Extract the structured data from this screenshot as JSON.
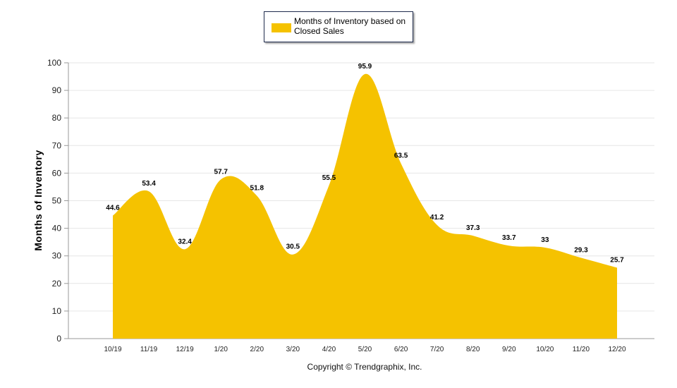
{
  "chart_data": {
    "type": "area",
    "categories": [
      "10/19",
      "11/19",
      "12/19",
      "1/20",
      "2/20",
      "3/20",
      "4/20",
      "5/20",
      "6/20",
      "7/20",
      "8/20",
      "9/20",
      "10/20",
      "11/20",
      "12/20"
    ],
    "series": [
      {
        "name": "Months of Inventory based on Closed Sales",
        "values": [
          44.6,
          53.4,
          32.4,
          57.7,
          51.8,
          30.5,
          55.5,
          95.9,
          63.5,
          41.2,
          37.3,
          33.7,
          33,
          29.3,
          25.7
        ],
        "labels": [
          "44.6",
          "53.4",
          "32.4",
          "57.7",
          "51.8",
          "30.5",
          "55.5",
          "95.9",
          "63.5",
          "41.2",
          "37.3",
          "33.7",
          "33",
          "29.3",
          "25.7"
        ],
        "color": "#f5c200"
      }
    ],
    "ylabel": "Months of Inventory",
    "ylim": [
      0,
      100
    ],
    "yticks": [
      "0",
      "10",
      "20",
      "30",
      "40",
      "50",
      "60",
      "70",
      "80",
      "90",
      "100"
    ],
    "grid": true,
    "legend_position": "top-center",
    "footer": "Copyright © Trendgraphix, Inc."
  }
}
